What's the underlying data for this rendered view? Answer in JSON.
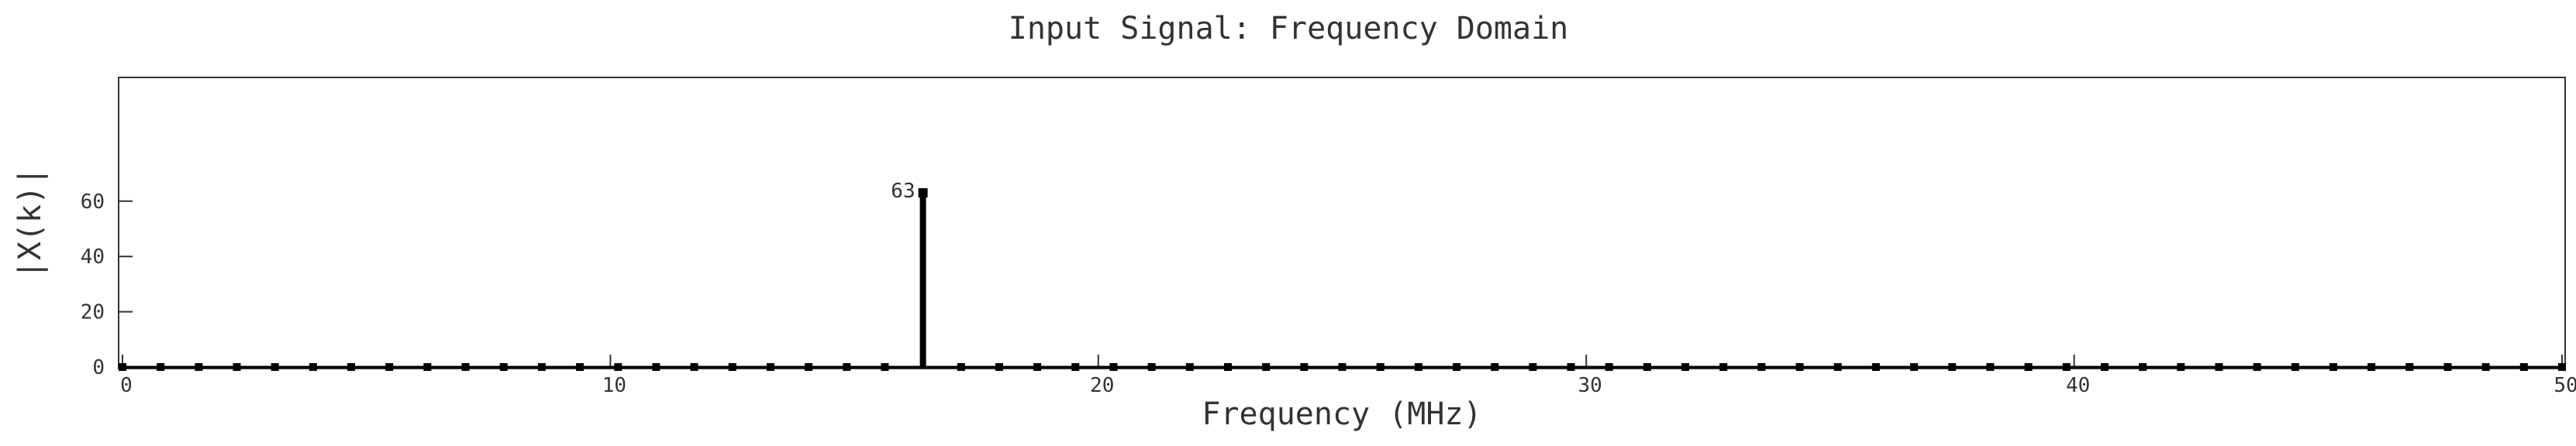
{
  "chart_data": {
    "type": "stem",
    "title": "Input Signal: Frequency Domain",
    "xlabel": "Frequency (MHz)",
    "ylabel": "|X(k)|",
    "xlim": [
      0,
      50
    ],
    "ylim": [
      0,
      70
    ],
    "xticks": [
      "0",
      "10",
      "20",
      "30",
      "40",
      "50"
    ],
    "yticks": [
      "0",
      "20",
      "40",
      "60"
    ],
    "x": [
      0,
      0.78125,
      1.5625,
      2.34375,
      3.125,
      3.90625,
      4.6875,
      5.46875,
      6.25,
      7.03125,
      7.8125,
      8.59375,
      9.375,
      10.15625,
      10.9375,
      11.71875,
      12.5,
      13.28125,
      14.0625,
      14.84375,
      15.625,
      16.40625,
      17.1875,
      17.96875,
      18.75,
      19.53125,
      20.3125,
      21.09375,
      21.875,
      22.65625,
      23.4375,
      24.21875,
      25,
      25.78125,
      26.5625,
      27.34375,
      28.125,
      28.90625,
      29.6875,
      30.46875,
      31.25,
      32.03125,
      32.8125,
      33.59375,
      34.375,
      35.15625,
      35.9375,
      36.71875,
      37.5,
      38.28125,
      39.0625,
      39.84375,
      40.625,
      41.40625,
      42.1875,
      42.96875,
      43.75,
      44.53125,
      45.3125,
      46.09375,
      46.875,
      47.65625,
      48.4375,
      49.21875,
      50
    ],
    "values": [
      0,
      0,
      0,
      0,
      0,
      0,
      0,
      0,
      0,
      0,
      0,
      0,
      0,
      0,
      0,
      0,
      0,
      0,
      0,
      0,
      0,
      63,
      0,
      0,
      0,
      0,
      0,
      0,
      0,
      0,
      0,
      0,
      0,
      0,
      0,
      0,
      0,
      0,
      0,
      0,
      0,
      0,
      0,
      0,
      0,
      0,
      0,
      0,
      0,
      0,
      0,
      0,
      0,
      0,
      0,
      0,
      0,
      0,
      0,
      0,
      0,
      0,
      0,
      0,
      0
    ],
    "annotations": [
      {
        "x": 16.40625,
        "y": 63,
        "text": "63"
      }
    ],
    "grid": false,
    "colors": {
      "stem": "#000000",
      "axis": "#333333",
      "text": "#333333"
    }
  }
}
